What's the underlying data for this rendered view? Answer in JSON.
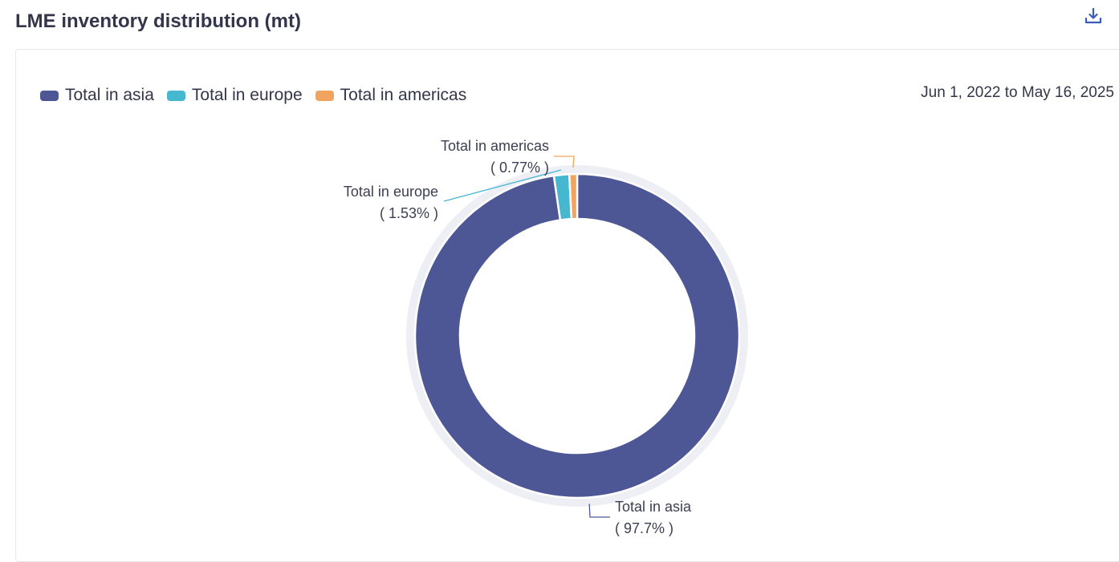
{
  "header": {
    "title": "LME inventory distribution (mt)",
    "download_icon": "download-icon"
  },
  "date_range": "Jun 1, 2022 to May 16, 2025",
  "legend": [
    {
      "label": "Total in asia",
      "color": "#4e5796"
    },
    {
      "label": "Total in europe",
      "color": "#45b7cf"
    },
    {
      "label": "Total in americas",
      "color": "#f2a35e"
    }
  ],
  "chart_data": {
    "type": "pie",
    "variant": "donut",
    "title": "LME inventory distribution (mt)",
    "legend_placement": "top-left",
    "slices": [
      {
        "name": "Total in asia",
        "percent": 97.7,
        "percent_label": "( 97.7% )",
        "color": "#4e5796"
      },
      {
        "name": "Total in europe",
        "percent": 1.53,
        "percent_label": "( 1.53% )",
        "color": "#45b7cf"
      },
      {
        "name": "Total in americas",
        "percent": 0.77,
        "percent_label": "( 0.77% )",
        "color": "#f2a35e"
      }
    ]
  }
}
